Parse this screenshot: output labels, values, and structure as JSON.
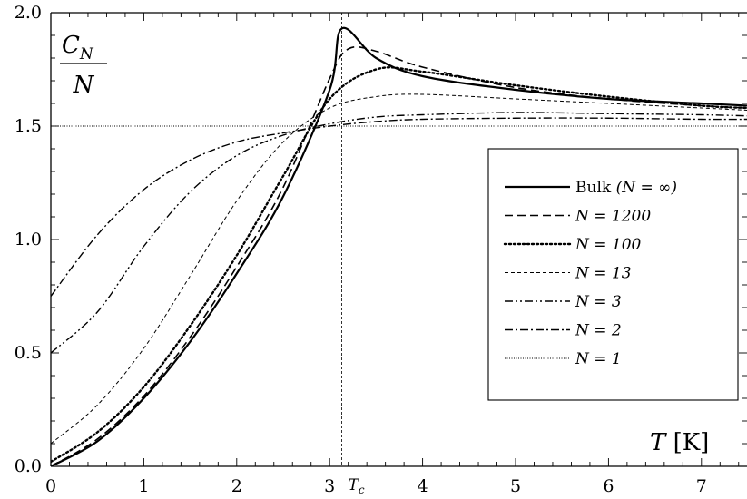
{
  "chart_data": {
    "type": "line",
    "xlabel": {
      "var": "T",
      "unit": "[K]"
    },
    "ylabel": {
      "numerator": "C",
      "sub": "N",
      "denominator": "N"
    },
    "xlim": [
      0,
      7.5
    ],
    "ylim": [
      0,
      2.0
    ],
    "x_ticks": [
      "0",
      "1",
      "2",
      "3",
      "4",
      "5",
      "6",
      "7"
    ],
    "y_ticks": [
      "0.0",
      "0.5",
      "1.0",
      "1.5",
      "2.0"
    ],
    "tc": {
      "x": 3.13,
      "label_main": "T",
      "label_sub": "c"
    },
    "reference_line": {
      "y": 1.5
    },
    "legend_position": "right",
    "series": [
      {
        "name": "Bulk (N = ∞)",
        "name_main": "Bulk ",
        "name_math": "(N = ∞)",
        "style": "solid",
        "width": 2.2,
        "dash": "",
        "x": [
          0,
          0.5,
          1,
          1.5,
          2,
          2.5,
          3.0,
          3.13,
          3.5,
          4,
          5,
          6,
          7,
          7.5
        ],
        "y": [
          0,
          0.11,
          0.3,
          0.55,
          0.85,
          1.19,
          1.66,
          1.93,
          1.8,
          1.72,
          1.66,
          1.62,
          1.6,
          1.59
        ]
      },
      {
        "name": "N = 1200",
        "name_main": "",
        "name_math": "N = 1200",
        "style": "dashed",
        "width": 1.6,
        "dash": "9,5",
        "x": [
          0,
          0.5,
          1,
          1.5,
          2,
          2.5,
          3.0,
          3.2,
          3.5,
          4,
          5,
          6,
          7,
          7.5
        ],
        "y": [
          0,
          0.12,
          0.31,
          0.57,
          0.88,
          1.23,
          1.71,
          1.84,
          1.83,
          1.76,
          1.67,
          1.62,
          1.59,
          1.58
        ]
      },
      {
        "name": "N = 100",
        "name_main": "",
        "name_math": "N = 100",
        "style": "dotted",
        "width": 2.4,
        "dash": "2,3",
        "x": [
          0,
          0.5,
          1,
          1.5,
          2,
          2.5,
          3.0,
          3.5,
          4,
          5,
          6,
          7,
          7.5
        ],
        "y": [
          0.02,
          0.15,
          0.35,
          0.62,
          0.93,
          1.28,
          1.62,
          1.75,
          1.74,
          1.68,
          1.63,
          1.59,
          1.58
        ]
      },
      {
        "name": "N = 13",
        "name_main": "",
        "name_math": "N = 13",
        "style": "fine-dashed",
        "width": 1.0,
        "dash": "4,3",
        "x": [
          0,
          0.5,
          1,
          1.5,
          2,
          2.5,
          3.0,
          3.5,
          4,
          5,
          6,
          7,
          7.5
        ],
        "y": [
          0.1,
          0.27,
          0.52,
          0.84,
          1.17,
          1.43,
          1.58,
          1.63,
          1.64,
          1.62,
          1.6,
          1.58,
          1.57
        ]
      },
      {
        "name": "N = 3",
        "name_main": "",
        "name_math": "N = 3",
        "style": "dash-dot-dot",
        "width": 1.4,
        "dash": "9,3,2,3,2,3",
        "x": [
          0,
          0.5,
          1,
          1.5,
          2,
          2.5,
          3.0,
          3.5,
          4,
          5,
          6,
          7,
          7.5
        ],
        "y": [
          0.5,
          0.68,
          0.97,
          1.21,
          1.37,
          1.46,
          1.51,
          1.54,
          1.55,
          1.56,
          1.555,
          1.55,
          1.545
        ]
      },
      {
        "name": "N = 2",
        "name_main": "",
        "name_math": "N = 2",
        "style": "dash-dot",
        "width": 1.4,
        "dash": "9,3,2,3",
        "x": [
          0,
          0.5,
          1,
          1.5,
          2,
          2.5,
          3.0,
          3.5,
          4,
          5,
          6,
          7,
          7.5
        ],
        "y": [
          0.75,
          1.02,
          1.22,
          1.35,
          1.43,
          1.47,
          1.5,
          1.52,
          1.53,
          1.535,
          1.535,
          1.53,
          1.53
        ]
      },
      {
        "name": "N = 1",
        "name_main": "",
        "name_math": "N = 1",
        "style": "dotted-thin",
        "width": 0.9,
        "dash": "1,1.5",
        "x": [
          0,
          7.5
        ],
        "y": [
          1.5,
          1.5
        ]
      }
    ]
  }
}
